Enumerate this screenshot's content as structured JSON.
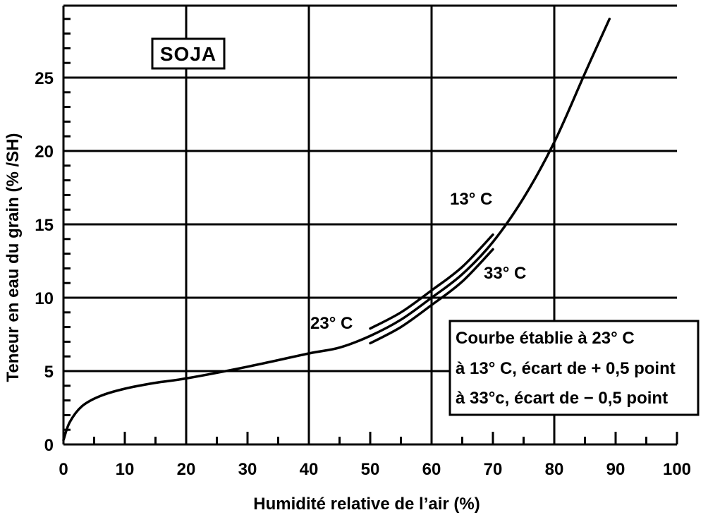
{
  "chart_data": {
    "type": "line",
    "title": "SOJA",
    "xlabel": "Humidité relative de l’air (%)",
    "ylabel": "Teneur en eau du grain (% /SH)",
    "xlim": [
      0,
      100
    ],
    "ylim": [
      0,
      29
    ],
    "x_ticks": [
      "0",
      "10",
      "20",
      "30",
      "40",
      "50",
      "60",
      "70",
      "80",
      "90",
      "100"
    ],
    "y_ticks": [
      "0",
      "5",
      "10",
      "15",
      "20",
      "25"
    ],
    "grid": true,
    "series": [
      {
        "name": "23° C",
        "x": [
          0,
          1,
          3,
          6,
          10,
          15,
          20,
          30,
          40,
          45,
          50,
          55,
          60,
          65,
          70,
          75,
          80,
          85,
          89
        ],
        "y": [
          0.3,
          1.5,
          2.6,
          3.3,
          3.8,
          4.2,
          4.5,
          5.3,
          6.2,
          6.6,
          7.4,
          8.5,
          10.0,
          11.6,
          13.8,
          16.8,
          20.6,
          25.3,
          29.0
        ]
      },
      {
        "name": "13° C",
        "x": [
          50,
          55,
          60,
          65,
          70
        ],
        "y": [
          7.9,
          9.0,
          10.5,
          12.1,
          14.3
        ]
      },
      {
        "name": "33° C",
        "x": [
          50,
          55,
          60,
          65,
          70
        ],
        "y": [
          6.9,
          8.0,
          9.5,
          11.1,
          13.3
        ]
      }
    ],
    "annotations": {
      "box_lines": [
        "Courbe établie à 23° C",
        "à 13° C, écart de + 0,5 point",
        "à 33°c, écart de − 0,5 point"
      ]
    }
  }
}
